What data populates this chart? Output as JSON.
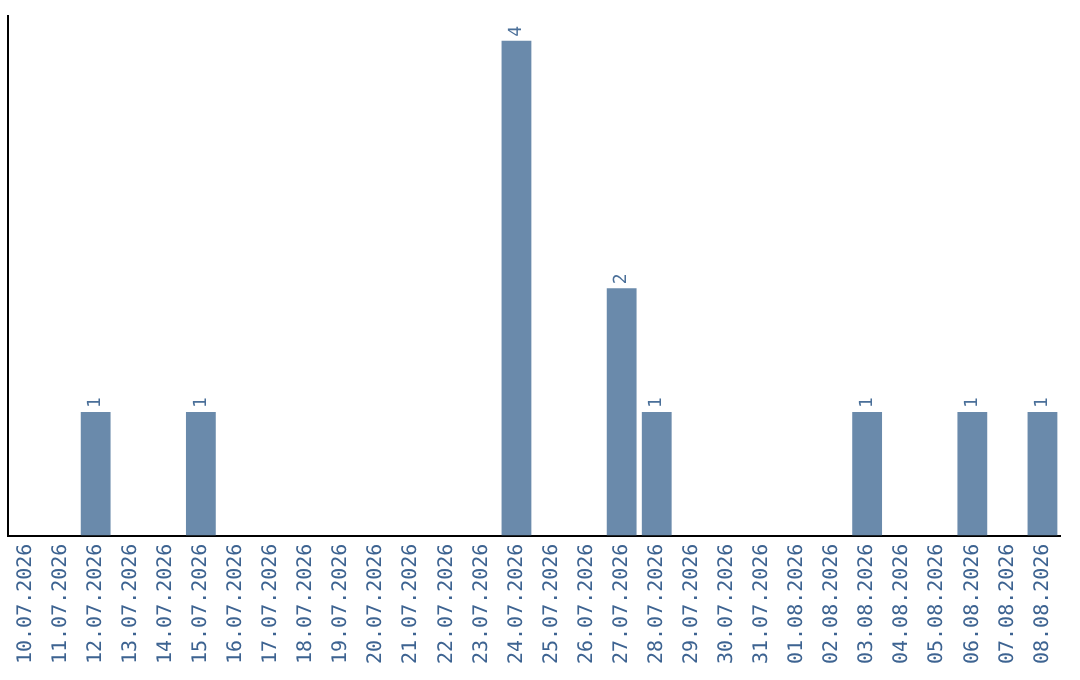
{
  "chart_data": {
    "type": "bar",
    "categories": [
      "10.07.2026",
      "11.07.2026",
      "12.07.2026",
      "13.07.2026",
      "14.07.2026",
      "15.07.2026",
      "16.07.2026",
      "17.07.2026",
      "18.07.2026",
      "19.07.2026",
      "20.07.2026",
      "21.07.2026",
      "22.07.2026",
      "23.07.2026",
      "24.07.2026",
      "25.07.2026",
      "26.07.2026",
      "27.07.2026",
      "28.07.2026",
      "29.07.2026",
      "30.07.2026",
      "31.07.2026",
      "01.08.2026",
      "02.08.2026",
      "03.08.2026",
      "04.08.2026",
      "05.08.2026",
      "06.08.2026",
      "07.08.2026",
      "08.08.2026"
    ],
    "values": [
      0,
      0,
      1,
      0,
      0,
      1,
      0,
      0,
      0,
      0,
      0,
      0,
      0,
      0,
      4,
      0,
      0,
      2,
      1,
      0,
      0,
      0,
      0,
      0,
      1,
      0,
      0,
      1,
      0,
      1
    ],
    "value_labels": [
      null,
      null,
      "1",
      null,
      null,
      "1",
      null,
      null,
      null,
      null,
      null,
      null,
      null,
      null,
      "4",
      null,
      null,
      "2",
      "1",
      null,
      null,
      null,
      null,
      null,
      "1",
      null,
      null,
      "1",
      null,
      "1"
    ],
    "color": "#6a8aab",
    "ylim": [
      0,
      4.2
    ],
    "tick_labels": "x",
    "grid": false,
    "legend": false
  }
}
